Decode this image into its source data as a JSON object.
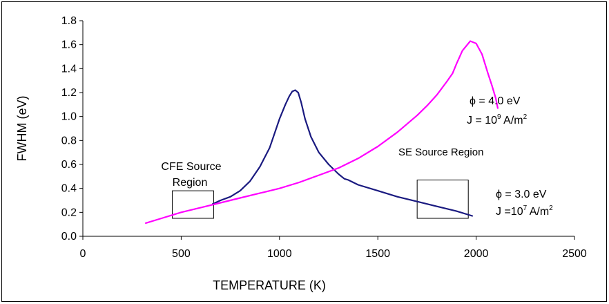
{
  "chart_data": {
    "type": "line",
    "title": "",
    "xlabel": "TEMPERATURE (K)",
    "ylabel": "FWHM (eV)",
    "xlim": [
      0,
      2500
    ],
    "ylim": [
      0.0,
      1.8
    ],
    "xticks": [
      "0",
      "500",
      "1000",
      "1500",
      "2000",
      "2500"
    ],
    "yticks": [
      "0.0",
      "0.2",
      "0.4",
      "0.6",
      "0.8",
      "1.0",
      "1.2",
      "1.4",
      "1.6",
      "1.8"
    ],
    "xtick_values": [
      0,
      500,
      1000,
      1500,
      2000,
      2500
    ],
    "ytick_values": [
      0.0,
      0.2,
      0.4,
      0.6,
      0.8,
      1.0,
      1.2,
      1.4,
      1.6,
      1.8
    ],
    "grid": false,
    "series": [
      {
        "key": "phi3",
        "color": "#1a1a80",
        "x": [
          660,
          700,
          750,
          800,
          850,
          900,
          950,
          1000,
          1030,
          1050,
          1065,
          1080,
          1095,
          1110,
          1130,
          1160,
          1200,
          1250,
          1300,
          1330,
          1350,
          1400,
          1500,
          1600,
          1700,
          1800,
          1900,
          1980
        ],
        "y": [
          0.27,
          0.3,
          0.33,
          0.38,
          0.46,
          0.58,
          0.74,
          0.98,
          1.1,
          1.17,
          1.21,
          1.22,
          1.2,
          1.12,
          0.98,
          0.83,
          0.7,
          0.6,
          0.52,
          0.48,
          0.47,
          0.43,
          0.38,
          0.33,
          0.29,
          0.25,
          0.21,
          0.17
        ]
      },
      {
        "key": "phi4",
        "color": "#ff00ff",
        "x": [
          320,
          400,
          500,
          600,
          700,
          800,
          900,
          1000,
          1100,
          1200,
          1300,
          1400,
          1500,
          1600,
          1700,
          1750,
          1800,
          1850,
          1880,
          1900,
          1930,
          1970,
          2000,
          2030,
          2060,
          2080,
          2100,
          2110
        ],
        "y": [
          0.11,
          0.15,
          0.2,
          0.24,
          0.28,
          0.32,
          0.36,
          0.4,
          0.45,
          0.51,
          0.57,
          0.65,
          0.75,
          0.87,
          1.01,
          1.09,
          1.18,
          1.29,
          1.36,
          1.44,
          1.55,
          1.63,
          1.61,
          1.52,
          1.36,
          1.26,
          1.15,
          1.07
        ]
      }
    ],
    "regions": [
      {
        "key": "cfe",
        "x": [
          455,
          665
        ],
        "y": [
          0.15,
          0.38
        ]
      },
      {
        "key": "se",
        "x": [
          1700,
          1960
        ],
        "y": [
          0.15,
          0.47
        ]
      }
    ],
    "annotations": {
      "cfe_line1": "CFE Source",
      "cfe_line2": "Region",
      "se_label": "SE Source Region",
      "phi4_symbol": "ϕ",
      "phi4_value": " = 4.0 eV",
      "phi4_j": "J = 10",
      "phi4_exp": "9",
      "phi4_unit": " A/m",
      "phi4_unit_exp": "2",
      "phi3_symbol": "ϕ",
      "phi3_value": " = 3.0 eV",
      "phi3_j": "J =10",
      "phi3_exp": "7",
      "phi3_unit": " A/m",
      "phi3_unit_exp": "2"
    }
  }
}
